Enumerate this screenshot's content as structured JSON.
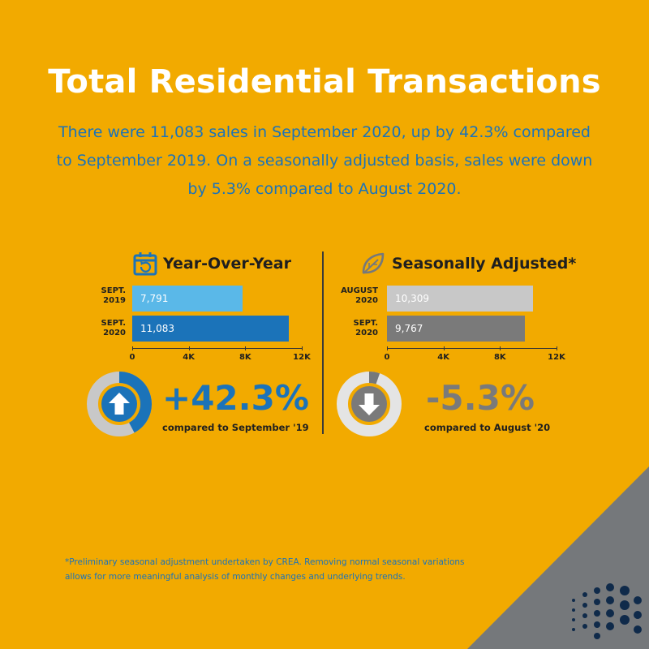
{
  "title": "Total Residential Transactions",
  "intro": "There were 11,083 sales in September 2020, up by 42.3% compared to September 2019. On a seasonally adjusted basis, sales were down by 5.3% compared to August 2020.",
  "footnote": {
    "line1": "*Preliminary seasonal adjustment undertaken by CREA. Removing normal seasonal variations",
    "line2": "allows for more meaningful analysis of monthly changes and underlying trends."
  },
  "panels": {
    "yoy": {
      "title": "Year-Over-Year",
      "icon": "calendar-icon",
      "change": "+42.3%",
      "compared": "compared to September '19",
      "change_color": "#1B73B9",
      "rows": [
        {
          "label1": "SEPT.",
          "label2": "2019",
          "value_label": "7,791"
        },
        {
          "label1": "SEPT.",
          "label2": "2020",
          "value_label": "11,083"
        }
      ]
    },
    "sa": {
      "title": "Seasonally Adjusted*",
      "icon": "leaf-icon",
      "change": "-5.3%",
      "compared": "compared to August '20",
      "change_color": "#7A7A7A",
      "rows": [
        {
          "label1": "AUGUST",
          "label2": "2020",
          "value_label": "10,309"
        },
        {
          "label1": "SEPT.",
          "label2": "2020",
          "value_label": "9,767"
        }
      ]
    }
  },
  "chart_data": [
    {
      "type": "bar",
      "title": "Year-Over-Year",
      "categories": [
        "SEPT. 2019",
        "SEPT. 2020"
      ],
      "values": [
        7791,
        11083
      ],
      "colors": [
        "#5AB8E8",
        "#1B73B9"
      ],
      "tick_labels": [
        "0",
        "4K",
        "8K",
        "12K"
      ],
      "ticks": [
        0,
        4000,
        8000,
        12000
      ],
      "xlim": [
        0,
        12000
      ],
      "change_fraction": 0.423,
      "grid": false
    },
    {
      "type": "bar",
      "title": "Seasonally Adjusted*",
      "categories": [
        "AUGUST 2020",
        "SEPT. 2020"
      ],
      "values": [
        10309,
        9767
      ],
      "colors": [
        "#C8C8C8",
        "#7A7A7A"
      ],
      "tick_labels": [
        "0",
        "4K",
        "8K",
        "12K"
      ],
      "ticks": [
        0,
        4000,
        8000,
        12000
      ],
      "xlim": [
        0,
        12000
      ],
      "change_fraction": 0.053,
      "grid": false
    }
  ],
  "colors": {
    "background": "#F2AA00",
    "title": "#FFFFFF",
    "accent_blue": "#1B73B9",
    "corner_gray": "#75787B",
    "logo_dots": "#0F2A4A"
  }
}
